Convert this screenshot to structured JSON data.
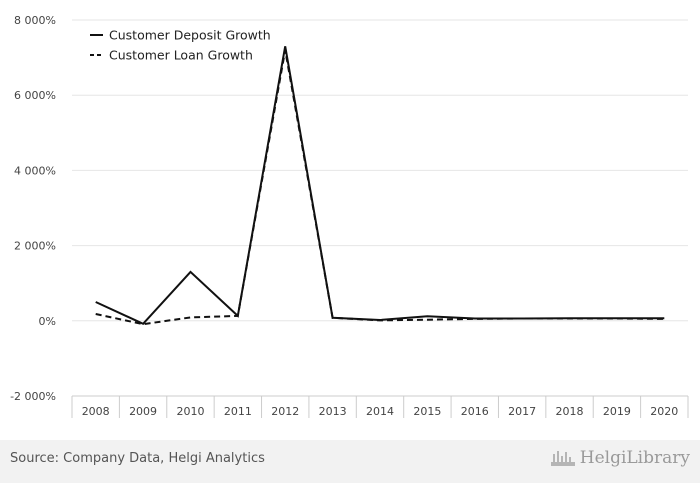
{
  "chart_data": {
    "type": "line",
    "x": [
      "2008",
      "2009",
      "2010",
      "2011",
      "2012",
      "2013",
      "2014",
      "2015",
      "2016",
      "2017",
      "2018",
      "2019",
      "2020"
    ],
    "series": [
      {
        "name": "Customer Deposit Growth",
        "style": "solid",
        "values": [
          500,
          -80,
          1300,
          130,
          7300,
          80,
          20,
          120,
          60,
          60,
          70,
          70,
          70
        ]
      },
      {
        "name": "Customer Loan Growth",
        "style": "dashed",
        "values": [
          180,
          -90,
          90,
          130,
          7200,
          80,
          10,
          30,
          50,
          60,
          60,
          60,
          50
        ]
      }
    ],
    "y_ticks": [
      8000,
      6000,
      4000,
      2000,
      0,
      -2000
    ],
    "y_tick_labels": [
      "8 000%",
      "6 000%",
      "4 000%",
      "2 000%",
      "0%",
      "-2 000%"
    ],
    "ylim": [
      -2000,
      8000
    ],
    "grid": true,
    "legend_position": "top-left",
    "colors": {
      "line": "#111111",
      "grid": "#e6e6e6",
      "axis": "#cccccc",
      "footer_bg": "#f2f2f2"
    }
  },
  "footer": {
    "source": "Source: Company Data, Helgi Analytics",
    "brand": "HelgiLibrary",
    "brand_icon": "helgi-logo-icon"
  }
}
